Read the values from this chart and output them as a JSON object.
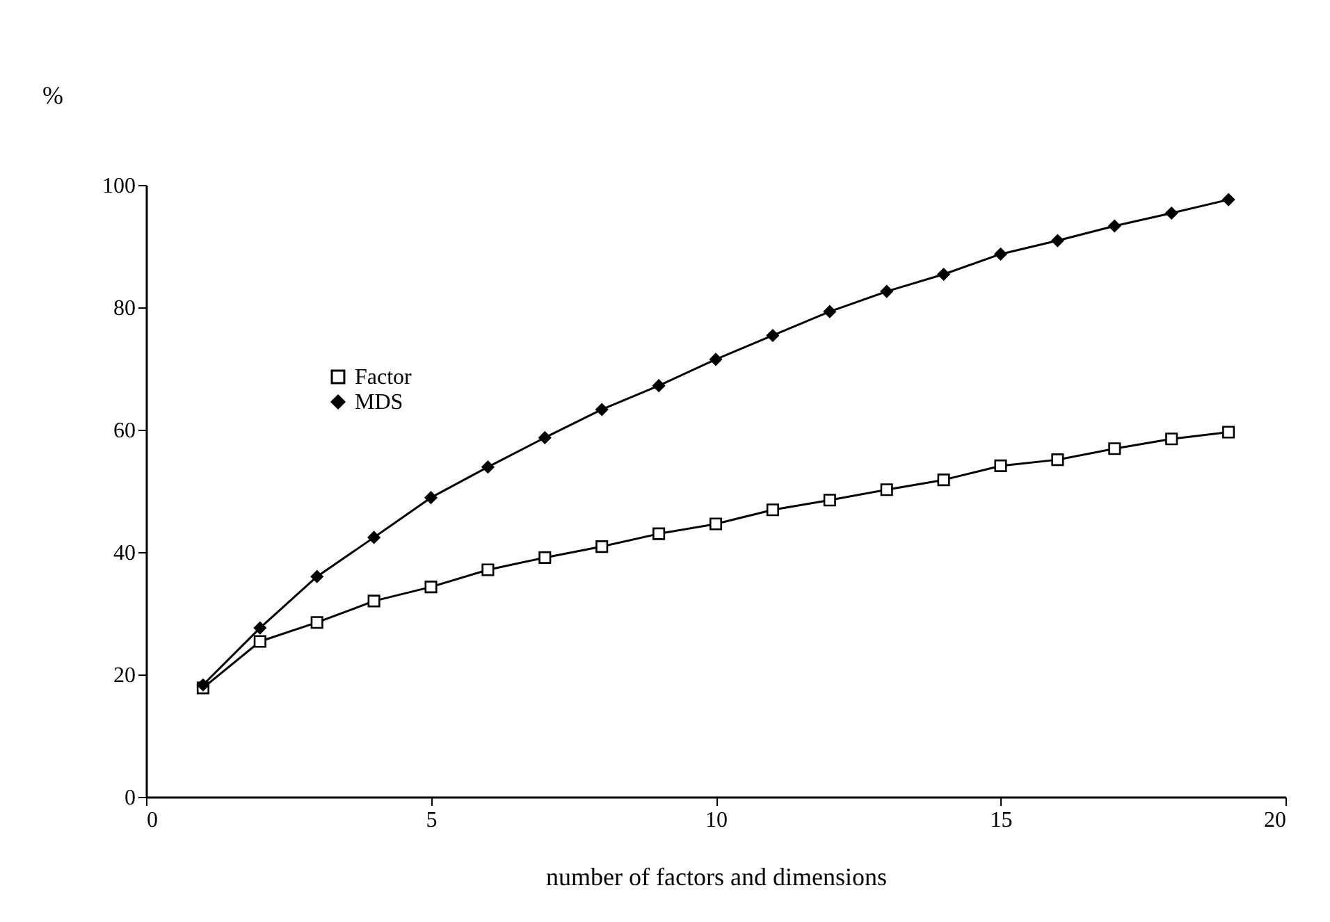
{
  "chart_data": {
    "type": "line",
    "xlabel": "number of factors and dimensions",
    "ylabel": "%",
    "x": [
      1,
      2,
      3,
      4,
      5,
      6,
      7,
      8,
      9,
      10,
      11,
      12,
      13,
      14,
      15,
      16,
      17,
      18,
      19
    ],
    "series": [
      {
        "name": "Factor",
        "color": "#000000",
        "marker": "square",
        "values": [
          17.8,
          25.4,
          28.5,
          32,
          34.3,
          37.1,
          39.1,
          40.9,
          43,
          44.6,
          46.9,
          48.5,
          50.2,
          51.8,
          54.1,
          55.1,
          56.9,
          58.5,
          59.6
        ]
      },
      {
        "name": "MDS",
        "color": "#000000",
        "marker": "diamond",
        "values": [
          18.3,
          27.6,
          36,
          42.4,
          48.9,
          53.9,
          58.7,
          63.3,
          67.2,
          71.5,
          75.4,
          79.3,
          82.6,
          85.4,
          88.7,
          90.9,
          93.3,
          95.4,
          97.6
        ]
      }
    ],
    "xlim": [
      0,
      20
    ],
    "xticks": [
      0,
      5,
      10,
      15,
      20
    ],
    "ylim": [
      0,
      100
    ],
    "yticks": [
      0,
      20,
      40,
      60,
      80,
      100
    ],
    "grid": false,
    "legend": "top left",
    "line_style": "solid"
  }
}
